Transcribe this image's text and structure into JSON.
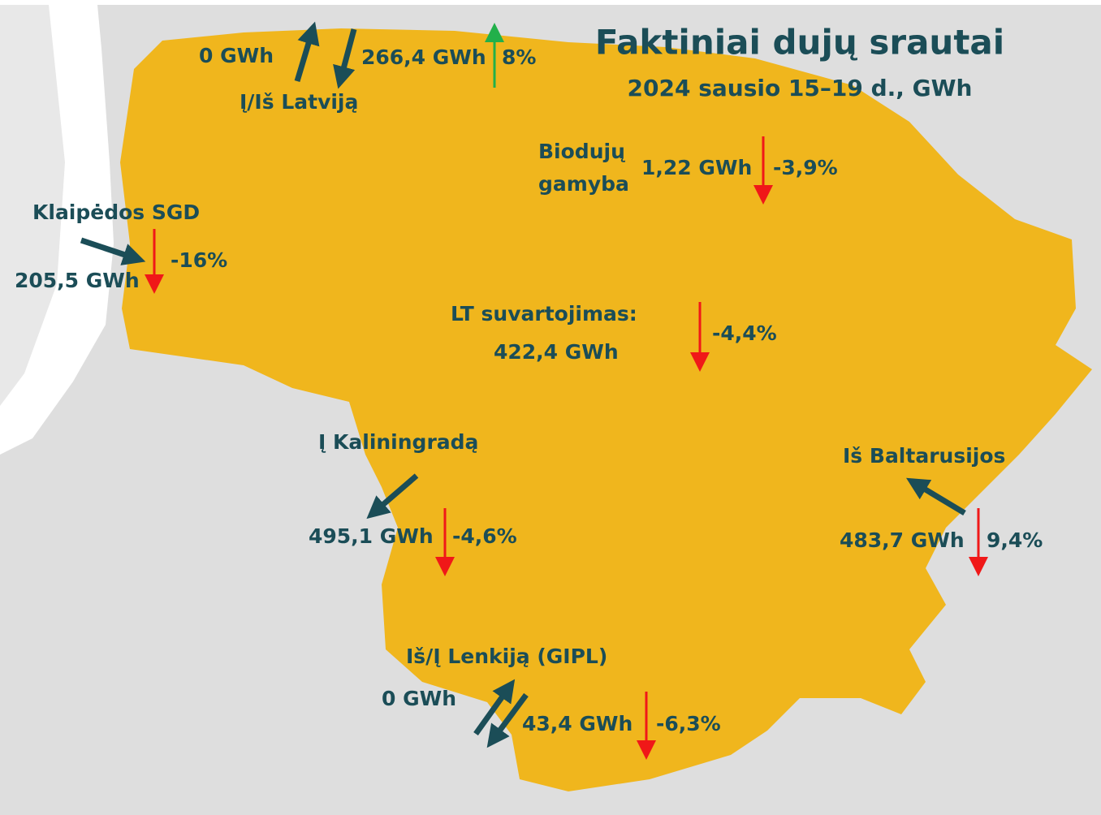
{
  "title": "Faktiniai dujų srautai",
  "subtitle": "2024 sausio 15–19 d., GWh",
  "latvia": {
    "name": "Į/Iš Latviją",
    "in": "0 GWh",
    "out": "266,4 GWh",
    "change": "8%"
  },
  "biogas": {
    "name": [
      "Biodujų",
      "gamyba"
    ],
    "value": "1,22 GWh",
    "change": "-3,9%"
  },
  "klaipeda": {
    "name": "Klaipėdos SGD",
    "value": "205,5 GWh",
    "change": "-16%"
  },
  "consumption": {
    "name": "LT suvartojimas:",
    "value": "422,4 GWh",
    "change": "-4,4%"
  },
  "kaliningrad": {
    "name": "Į Kaliningradą",
    "value": "495,1 GWh",
    "change": "-4,6%"
  },
  "belarus": {
    "name": "Iš Baltarusijos",
    "value": "483,7 GWh",
    "change": "9,4%"
  },
  "poland": {
    "name": "Iš/Į Lenkiją (GIPL)",
    "in": "0 GWh",
    "out": "43,4 GWh",
    "change": "-6,3%"
  }
}
